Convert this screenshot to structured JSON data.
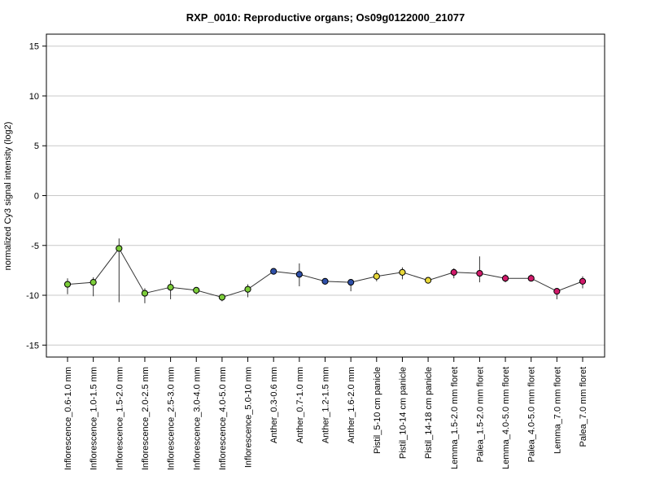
{
  "chart_data": {
    "type": "scatter",
    "title": "RXP_0010: Reproductive organs; Os09g0122000_21077",
    "xlabel": "",
    "ylabel": "normalized Cy3 signal intensity (log2)",
    "ylim": [
      -16.2,
      16.2
    ],
    "yticks": [
      -15,
      -10,
      -5,
      0,
      5,
      10,
      15
    ],
    "grid": true,
    "connected_line": true,
    "categories": [
      "Inflorescence_0.6-1.0 mm",
      "Inflorescence_1.0-1.5 mm",
      "Inflorescence_1.5-2.0 mm",
      "Inflorescence_2.0-2.5 mm",
      "Inflorescence_2.5-3.0 mm",
      "Inflorescence_3.0-4.0 mm",
      "Inflorescence_4.0-5.0 mm",
      "Inflorescence_5.0-10 mm",
      "Anther_0.3-0.6 mm",
      "Anther_0.7-1.0 mm",
      "Anther_1.2-1.5 mm",
      "Anther_1.6-2.0 mm",
      "Pistil_5-10 cm panicle",
      "Pistil_10-14 cm panicle",
      "Pistil_14-18 cm panicle",
      "Lemma_1.5-2.0 mm floret",
      "Palea_1.5-2.0 mm floret",
      "Lemma_4.0-5.0 mm floret",
      "Palea_4.0-5.0 mm floret",
      "Lemma_7.0 mm floret",
      "Palea_7.0 mm floret"
    ],
    "values": [
      -8.9,
      -8.7,
      -5.3,
      -9.8,
      -9.2,
      -9.5,
      -10.2,
      -9.4,
      -7.6,
      -7.9,
      -8.6,
      -8.7,
      -8.1,
      -7.7,
      -8.5,
      -7.7,
      -7.8,
      -8.3,
      -8.3,
      -9.6,
      -8.6
    ],
    "err_low": [
      -9.9,
      -10.1,
      -10.7,
      -10.8,
      -10.4,
      -9.9,
      -10.6,
      -10.2,
      -7.7,
      -9.1,
      -8.8,
      -9.6,
      -8.6,
      -8.4,
      -8.7,
      -8.3,
      -8.7,
      -8.7,
      -8.6,
      -10.4,
      -9.3
    ],
    "err_high": [
      -8.3,
      -8.2,
      -4.3,
      -9.3,
      -8.5,
      -9.2,
      -9.9,
      -8.9,
      -7.5,
      -6.8,
      -8.4,
      -8.5,
      -7.5,
      -7.2,
      -8.2,
      -7.3,
      -6.1,
      -7.9,
      -7.9,
      -9.3,
      -8.1
    ],
    "colors": [
      "#7ccd3a",
      "#7ccd3a",
      "#7ccd3a",
      "#7ccd3a",
      "#7ccd3a",
      "#7ccd3a",
      "#7ccd3a",
      "#7ccd3a",
      "#2e4fa8",
      "#2e4fa8",
      "#2e4fa8",
      "#2e4fa8",
      "#e8d83a",
      "#e8d83a",
      "#e8d83a",
      "#d11a6a",
      "#d11a6a",
      "#d11a6a",
      "#d11a6a",
      "#d11a6a",
      "#d11a6a"
    ]
  }
}
